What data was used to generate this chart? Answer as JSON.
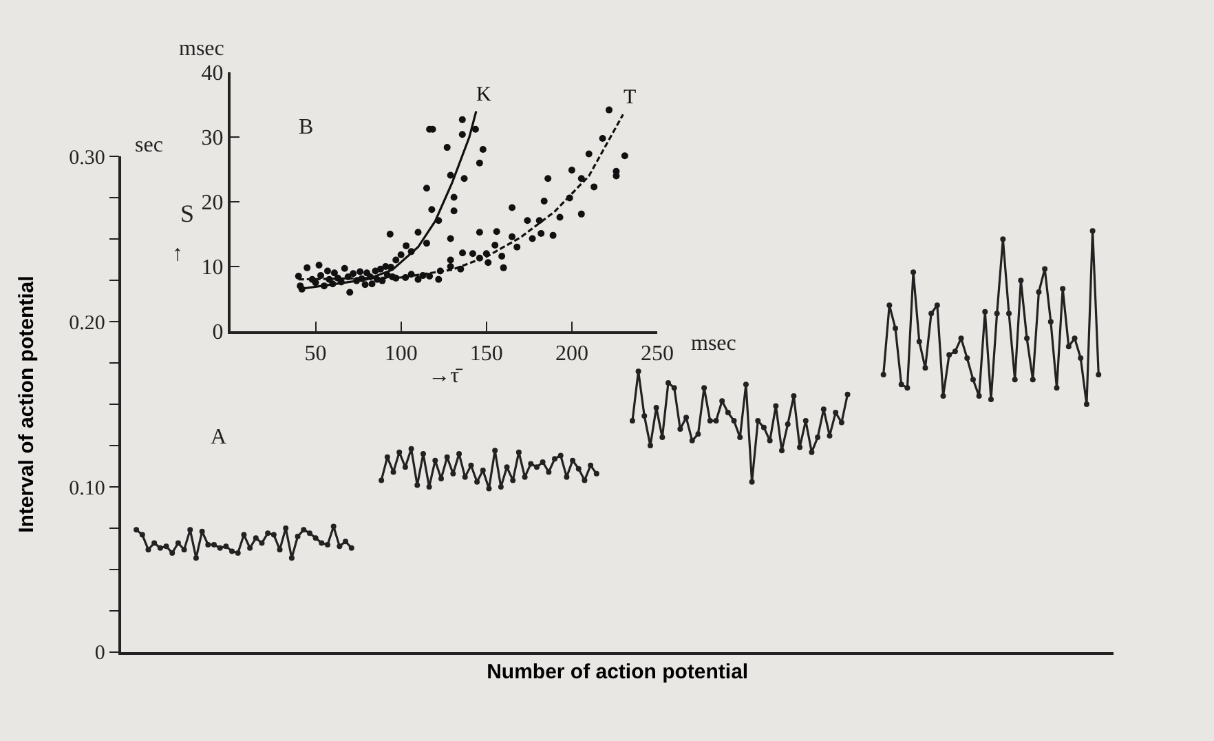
{
  "chart_data": [
    {
      "type": "line",
      "xlabel": "Number of action potential",
      "ylabel": "Interval of action potential",
      "annotations": [
        "sec",
        "A"
      ],
      "categories": [
        null,
        null,
        null,
        null,
        null,
        null,
        null,
        null,
        null,
        null,
        null,
        null,
        null,
        null,
        null,
        null,
        null,
        null,
        null,
        null,
        null,
        null,
        null,
        null,
        null,
        null,
        null,
        null,
        null,
        null,
        null,
        null,
        null,
        null,
        null,
        null,
        null,
        null,
        null,
        null,
        null,
        null,
        null,
        null,
        null,
        null,
        null,
        null,
        null,
        null,
        null,
        null,
        null,
        null,
        null,
        null,
        null,
        null,
        null,
        null,
        null,
        null,
        null,
        null,
        null,
        null,
        null,
        null,
        null,
        null,
        null,
        null,
        null,
        null,
        null,
        null,
        null,
        null,
        null,
        null,
        null,
        null,
        null,
        null,
        null,
        null,
        null,
        null,
        null,
        null,
        null,
        null,
        null,
        null,
        null,
        null,
        null,
        null,
        null,
        null,
        null,
        null,
        null,
        null,
        null,
        null,
        null,
        null,
        null,
        null,
        null,
        null,
        null,
        null,
        null,
        null,
        null,
        null,
        null,
        null,
        null,
        null,
        null,
        null,
        null,
        null,
        null,
        null,
        null,
        null,
        null,
        null,
        null,
        null,
        null,
        null,
        null,
        null,
        null,
        null,
        null,
        null,
        null,
        null,
        null,
        null,
        null,
        null,
        null,
        null,
        null,
        null,
        null,
        null,
        null,
        null,
        null,
        null,
        null,
        null,
        null,
        null,
        null,
        null,
        null,
        null
      ],
      "series": [
        {
          "color": "#222222",
          "values": [
            null,
            null,
            0.074,
            0.071,
            0.062,
            0.066,
            0.063,
            0.064,
            0.06,
            0.066,
            0.062,
            0.074,
            0.057,
            0.073,
            0.065,
            0.065,
            0.063,
            0.064,
            0.061,
            0.06,
            0.071,
            0.063,
            0.069,
            0.066,
            0.072,
            0.071,
            0.062,
            0.075,
            0.057,
            0.07,
            0.074,
            0.072,
            0.069,
            0.066,
            0.065,
            0.076,
            0.064,
            0.067,
            0.063,
            null,
            null,
            null,
            null,
            null,
            null,
            null,
            null,
            null,
            null,
            null,
            null,
            null,
            null,
            null,
            null,
            null,
            null,
            null,
            null,
            null,
            null,
            null,
            null,
            null,
            null,
            null,
            null,
            null,
            null,
            null,
            null,
            null,
            null,
            null,
            null,
            null,
            null,
            null,
            null,
            null,
            null,
            null,
            null,
            null,
            null,
            null,
            null,
            null,
            null,
            null,
            null,
            null,
            null,
            null,
            null,
            null,
            null,
            null,
            null,
            null,
            null,
            null,
            null,
            null,
            null,
            null,
            null,
            null,
            null,
            null,
            null,
            null,
            null,
            null,
            null,
            null,
            null,
            null,
            null,
            null,
            null,
            null,
            null,
            null,
            null,
            null,
            null,
            null,
            null,
            null,
            null,
            null,
            null,
            null,
            null,
            null,
            null,
            null,
            null,
            null,
            null,
            null,
            null,
            null,
            null,
            null,
            null,
            null,
            null,
            null,
            null,
            null,
            null,
            null,
            null,
            null,
            null,
            null,
            null,
            null,
            null,
            null,
            null,
            null,
            null,
            null
          ]
        },
        {
          "color": "#222222",
          "values": [
            null,
            null,
            null,
            null,
            null,
            null,
            null,
            null,
            null,
            null,
            null,
            null,
            null,
            null,
            null,
            null,
            null,
            null,
            null,
            null,
            null,
            null,
            null,
            null,
            null,
            null,
            null,
            null,
            null,
            null,
            null,
            null,
            null,
            null,
            null,
            null,
            null,
            null,
            null,
            null,
            null,
            null,
            null,
            0.104,
            0.118,
            0.109,
            0.121,
            0.112,
            0.123,
            0.101,
            0.12,
            0.1,
            0.116,
            0.105,
            0.118,
            0.108,
            0.12,
            0.106,
            0.113,
            0.103,
            0.11,
            0.099,
            0.122,
            0.1,
            0.112,
            0.104,
            0.121,
            0.106,
            0.114,
            0.112,
            0.115,
            0.109,
            0.117,
            0.119,
            0.106,
            0.116,
            0.111,
            0.104,
            0.113,
            0.108,
            null,
            null,
            null,
            null,
            null,
            null,
            null,
            null,
            null,
            null,
            null,
            null,
            null,
            null,
            null,
            null,
            null,
            null,
            null,
            null,
            null,
            null,
            null,
            null,
            null,
            null,
            null,
            null,
            null,
            null,
            null,
            null,
            null,
            null,
            null,
            null,
            null,
            null,
            null,
            null,
            null,
            null,
            null,
            null,
            null,
            null,
            null,
            null,
            null,
            null,
            null,
            null,
            null,
            null,
            null,
            null,
            null,
            null,
            null,
            null,
            null,
            null,
            null,
            null,
            null,
            null,
            null,
            null,
            null,
            null,
            null,
            null,
            null,
            null,
            null,
            null,
            null,
            null,
            null,
            null,
            null,
            null,
            null,
            null,
            null,
            null
          ]
        },
        {
          "color": "#222222",
          "values": [
            null,
            null,
            null,
            null,
            null,
            null,
            null,
            null,
            null,
            null,
            null,
            null,
            null,
            null,
            null,
            null,
            null,
            null,
            null,
            null,
            null,
            null,
            null,
            null,
            null,
            null,
            null,
            null,
            null,
            null,
            null,
            null,
            null,
            null,
            null,
            null,
            null,
            null,
            null,
            null,
            null,
            null,
            null,
            null,
            null,
            null,
            null,
            null,
            null,
            null,
            null,
            null,
            null,
            null,
            null,
            null,
            null,
            null,
            null,
            null,
            null,
            null,
            null,
            null,
            null,
            null,
            null,
            null,
            null,
            null,
            null,
            null,
            null,
            null,
            null,
            null,
            null,
            null,
            null,
            null,
            null,
            null,
            null,
            null,
            null,
            0.14,
            0.17,
            0.143,
            0.125,
            0.148,
            0.13,
            0.163,
            0.16,
            0.135,
            0.142,
            0.128,
            0.132,
            0.16,
            0.14,
            0.14,
            0.152,
            0.145,
            0.14,
            0.13,
            0.162,
            0.103,
            0.14,
            0.136,
            0.128,
            0.149,
            0.122,
            0.138,
            0.155,
            0.124,
            0.14,
            0.121,
            0.13,
            0.147,
            0.131,
            0.145,
            0.139,
            0.156,
            null,
            null,
            null,
            null,
            null,
            null,
            null,
            null,
            null,
            null,
            null,
            null,
            null,
            null,
            null,
            null,
            null,
            null,
            null,
            null,
            null,
            null,
            null,
            null,
            null,
            null,
            null,
            null,
            null,
            null,
            null,
            null,
            null,
            null,
            null,
            null,
            null,
            null,
            null,
            null,
            null,
            null,
            null,
            null
          ]
        },
        {
          "color": "#222222",
          "values": [
            null,
            null,
            null,
            null,
            null,
            null,
            null,
            null,
            null,
            null,
            null,
            null,
            null,
            null,
            null,
            null,
            null,
            null,
            null,
            null,
            null,
            null,
            null,
            null,
            null,
            null,
            null,
            null,
            null,
            null,
            null,
            null,
            null,
            null,
            null,
            null,
            null,
            null,
            null,
            null,
            null,
            null,
            null,
            null,
            null,
            null,
            null,
            null,
            null,
            null,
            null,
            null,
            null,
            null,
            null,
            null,
            null,
            null,
            null,
            null,
            null,
            null,
            null,
            null,
            null,
            null,
            null,
            null,
            null,
            null,
            null,
            null,
            null,
            null,
            null,
            null,
            null,
            null,
            null,
            null,
            null,
            null,
            null,
            null,
            null,
            null,
            null,
            null,
            null,
            null,
            null,
            null,
            null,
            null,
            null,
            null,
            null,
            null,
            null,
            null,
            null,
            null,
            null,
            null,
            null,
            null,
            null,
            null,
            null,
            null,
            null,
            null,
            null,
            null,
            null,
            null,
            null,
            null,
            null,
            null,
            null,
            null,
            null,
            null,
            null,
            null,
            null,
            0.168,
            0.21,
            0.196,
            0.162,
            0.16,
            0.23,
            0.188,
            0.172,
            0.205,
            0.21,
            0.155,
            0.18,
            0.182,
            0.19,
            0.178,
            0.165,
            0.155,
            0.206,
            0.153,
            0.205,
            0.25,
            0.205,
            0.165,
            0.225,
            0.19,
            0.165,
            0.218,
            0.232,
            0.2,
            0.16,
            0.22,
            0.185,
            0.19,
            0.178,
            0.15,
            0.255,
            0.168,
            null,
            null
          ]
        }
      ],
      "ylim": [
        0,
        0.3
      ],
      "yticks": [
        {
          "value": 0,
          "label": "0"
        },
        {
          "value": 0.025,
          "label": null
        },
        {
          "value": 0.05,
          "label": null
        },
        {
          "value": 0.075,
          "label": null
        },
        {
          "value": 0.1,
          "label": "0.10"
        },
        {
          "value": 0.125,
          "label": null
        },
        {
          "value": 0.15,
          "label": null
        },
        {
          "value": 0.175,
          "label": null
        },
        {
          "value": 0.2,
          "label": "0.20"
        },
        {
          "value": 0.225,
          "label": null
        },
        {
          "value": 0.25,
          "label": null
        },
        {
          "value": 0.275,
          "label": null
        },
        {
          "value": 0.3,
          "label": "0.30"
        }
      ],
      "tick_labels": "y",
      "marker": "circle",
      "line_style": "solid",
      "grid": false,
      "legend": false
    },
    {
      "type": "scatter",
      "xlabel": "→τ̄",
      "ylabel": "S",
      "annotations": [
        "msec",
        "msec",
        "B",
        "↑"
      ],
      "series": [
        {
          "color": "#111111",
          "marker": "circle",
          "x": [
            40,
            41,
            42,
            45,
            48,
            50,
            52,
            53,
            55,
            57,
            58,
            60,
            61,
            63,
            65,
            67,
            69,
            70,
            72,
            74,
            76,
            77,
            79,
            80,
            82,
            83,
            85,
            86,
            88,
            89,
            91,
            92,
            94,
            95,
            97,
            116.7,
            118.5,
            135.9,
            135.9,
            143.6,
            148,
            146,
            127,
            129,
            131,
            131,
            137,
            115,
            118,
            122,
            129,
            110,
            115,
            103,
            100,
            106,
            93.6,
            97,
            146,
            156,
            221.8,
            218,
            231,
            226,
            226,
            210,
            213,
            200,
            205.6,
            205.6,
            198.7,
            193,
            189,
            186,
            183.8,
            181,
            182,
            174,
            176.9,
            165,
            165,
            167.9,
            160,
            155,
            159,
            150,
            146,
            151,
            142,
            136,
            134.9,
            129,
            129,
            123,
            122,
            116.7,
            112.8,
            110,
            106,
            102.6
          ],
          "values": [
            8.5,
            7,
            6.5,
            9.8,
            8,
            7.5,
            10.2,
            8.6,
            7,
            9.3,
            8,
            7.3,
            9,
            8.2,
            7.6,
            9.7,
            8.4,
            6,
            8.9,
            7.8,
            9.2,
            8.1,
            7.2,
            9,
            8.4,
            7.3,
            9.3,
            8,
            9.6,
            7.8,
            10,
            8.7,
            9.9,
            8.4,
            8.2,
            31.2,
            31.2,
            32.7,
            30.4,
            31.2,
            28.1,
            26,
            28.4,
            24.1,
            20.7,
            18.6,
            23.6,
            22.1,
            18.8,
            17.1,
            14.3,
            15.3,
            13.6,
            13.2,
            11.8,
            12.3,
            15,
            11,
            15.3,
            15.4,
            34.2,
            29.8,
            27.1,
            24.7,
            24,
            27.4,
            22.3,
            24.9,
            23.6,
            18.1,
            20.6,
            17.6,
            14.8,
            23.6,
            20.1,
            17.1,
            15.1,
            17.1,
            14.3,
            19.1,
            14.6,
            13,
            9.8,
            13.3,
            11.6,
            12,
            11.3,
            10.6,
            12,
            12.1,
            9.6,
            10,
            11,
            9.3,
            8,
            8.5,
            8.6,
            8,
            8.8,
            8.3
          ]
        },
        {
          "type": "line",
          "name": "K",
          "color": "#111111",
          "marker": "none",
          "line_style": "solid",
          "x": [
            40,
            80,
            95,
            110,
            120,
            130,
            140,
            144
          ],
          "values": [
            6.5,
            8,
            9.5,
            13,
            17,
            23,
            30,
            34
          ]
        },
        {
          "type": "line",
          "name": "T",
          "color": "#111111",
          "marker": "none",
          "line_style": "dashed",
          "x": [
            40,
            100,
            130,
            150,
            170,
            190,
            210,
            230
          ],
          "values": [
            8,
            8.3,
            9.5,
            11.5,
            14.5,
            18.5,
            24,
            33.5
          ]
        }
      ],
      "xlim": [
        0,
        250
      ],
      "xticks": [
        {
          "value": 0,
          "label": null
        },
        50,
        100,
        150,
        200,
        250
      ],
      "ylim": [
        0,
        40
      ],
      "yticks": [
        0,
        10,
        20,
        30,
        40
      ],
      "grid": false,
      "legend": false
    }
  ]
}
